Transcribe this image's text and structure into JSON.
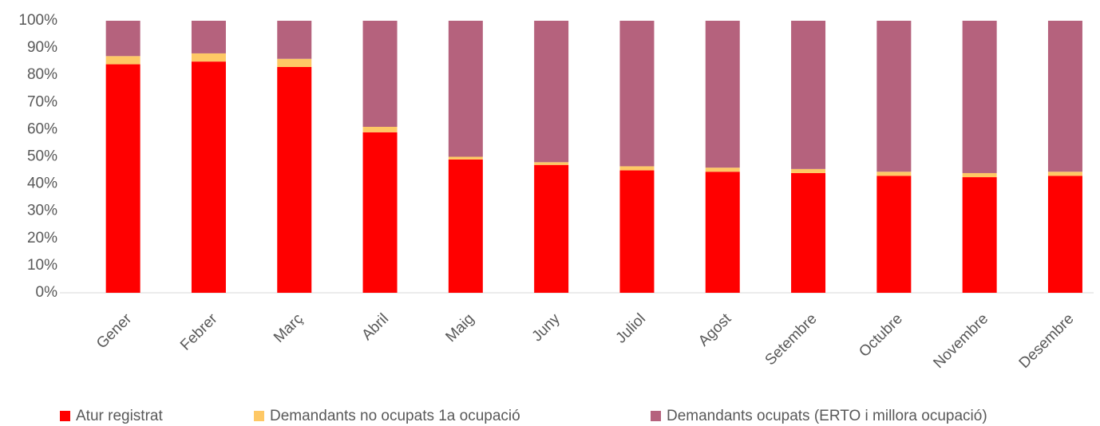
{
  "chart_data": {
    "type": "stacked_bar",
    "categories": [
      "Gener",
      "Febrer",
      "Març",
      "Abril",
      "Maig",
      "Juny",
      "Juliol",
      "Agost",
      "Setembre",
      "Octubre",
      "Novembre",
      "Desembre"
    ],
    "series": [
      {
        "name": "Atur registrat",
        "color": "#ff0000",
        "values": [
          84,
          85,
          83,
          59,
          49,
          47,
          45,
          44.5,
          44,
          43,
          42.5,
          43
        ]
      },
      {
        "name": "Demandants no ocupats 1a ocupació",
        "color": "#fec865",
        "values": [
          3,
          3,
          3,
          2,
          1,
          1,
          1.5,
          1.5,
          1.5,
          1.5,
          1.5,
          1.5
        ]
      },
      {
        "name": "Demandants ocupats (ERTO i millora ocupació)",
        "color": "#b5627d",
        "values": [
          13,
          12,
          14,
          39,
          50,
          52,
          53.5,
          54,
          54.5,
          55.5,
          56,
          55.5
        ]
      }
    ],
    "ylim": [
      0,
      100
    ],
    "yticks": [
      {
        "value": 0,
        "label": "0%"
      },
      {
        "value": 10,
        "label": "10%"
      },
      {
        "value": 20,
        "label": "20%"
      },
      {
        "value": 30,
        "label": "30%"
      },
      {
        "value": 40,
        "label": "40%"
      },
      {
        "value": 50,
        "label": "50%"
      },
      {
        "value": 60,
        "label": "60%"
      },
      {
        "value": 70,
        "label": "70%"
      },
      {
        "value": 80,
        "label": "80%"
      },
      {
        "value": 90,
        "label": "90%"
      },
      {
        "value": 100,
        "label": "100%"
      }
    ]
  }
}
